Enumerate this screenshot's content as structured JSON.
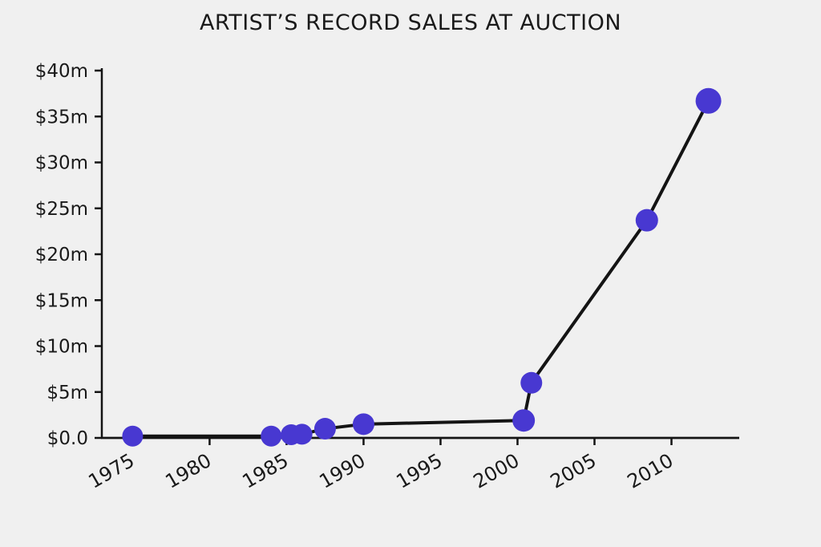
{
  "colors": {
    "background": "#f0f0f0",
    "marker": "#4838d1",
    "line": "#141414",
    "axis": "#141414",
    "text": "#1a1a1a"
  },
  "chart_data": {
    "type": "line",
    "title": "ARTIST’S RECORD SALES AT AUCTION",
    "xlabel": "",
    "ylabel": "",
    "x": [
      1975,
      1984,
      1985.3,
      1986,
      1987.5,
      1990,
      2000.4,
      2000.9,
      2008.4,
      2012.4
    ],
    "y": [
      0.2,
      0.2,
      0.35,
      0.4,
      1.0,
      1.5,
      1.9,
      6.0,
      23.7,
      36.7
    ],
    "y_units": "million USD",
    "marker_radii": [
      13,
      13,
      13,
      13,
      13.5,
      13.5,
      14,
      13.5,
      14,
      16
    ],
    "x_ticks": [
      1975,
      1980,
      1985,
      1990,
      1995,
      2000,
      2005,
      2010
    ],
    "x_tick_labels": [
      "1975",
      "1980",
      "1985",
      "1990",
      "1995",
      "2000",
      "2005",
      "2010"
    ],
    "y_ticks": [
      0,
      5,
      10,
      15,
      20,
      25,
      30,
      35,
      40
    ],
    "y_tick_labels": [
      "$0.0",
      "$5m",
      "$10m",
      "$15m",
      "$20m",
      "$25m",
      "$30m",
      "$35m",
      "$40m"
    ],
    "xlim": [
      1973,
      2014.4
    ],
    "ylim": [
      0,
      40.3
    ],
    "x_tick_rotation_deg": 30,
    "grid": false,
    "legend": null
  }
}
